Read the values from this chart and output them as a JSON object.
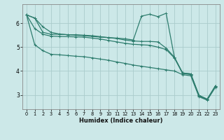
{
  "xlabel": "Humidex (Indice chaleur)",
  "ylabel": "",
  "bg_color": "#cce8e8",
  "grid_color": "#aacccc",
  "line_color": "#2e7d6e",
  "xlim": [
    -0.5,
    23.5
  ],
  "ylim": [
    2.4,
    6.8
  ],
  "yticks": [
    3,
    4,
    5,
    6
  ],
  "xticks": [
    0,
    1,
    2,
    3,
    4,
    5,
    6,
    7,
    8,
    9,
    10,
    11,
    12,
    13,
    14,
    15,
    16,
    17,
    18,
    19,
    20,
    21,
    22,
    23
  ],
  "lines": [
    [
      6.35,
      6.22,
      5.85,
      5.62,
      5.55,
      5.52,
      5.5,
      5.48,
      5.45,
      5.42,
      5.4,
      5.38,
      5.35,
      5.3,
      6.3,
      6.38,
      6.28,
      6.42,
      4.58,
      3.92,
      3.88,
      2.98,
      2.82,
      3.38
    ],
    [
      6.35,
      6.22,
      5.62,
      5.54,
      5.54,
      5.52,
      5.52,
      5.5,
      5.48,
      5.44,
      5.4,
      5.36,
      5.3,
      5.26,
      5.24,
      5.24,
      5.22,
      4.96,
      4.58,
      3.92,
      3.88,
      2.98,
      2.82,
      3.38
    ],
    [
      6.35,
      5.78,
      5.54,
      5.46,
      5.45,
      5.44,
      5.43,
      5.42,
      5.38,
      5.34,
      5.28,
      5.22,
      5.16,
      5.12,
      5.1,
      5.08,
      5.0,
      4.9,
      4.55,
      3.9,
      3.85,
      2.95,
      2.8,
      3.35
    ],
    [
      6.35,
      5.1,
      4.85,
      4.7,
      4.68,
      4.65,
      4.62,
      4.6,
      4.55,
      4.5,
      4.45,
      4.38,
      4.32,
      4.25,
      4.2,
      4.15,
      4.1,
      4.05,
      4.0,
      3.85,
      3.8,
      2.92,
      2.78,
      3.32
    ]
  ]
}
